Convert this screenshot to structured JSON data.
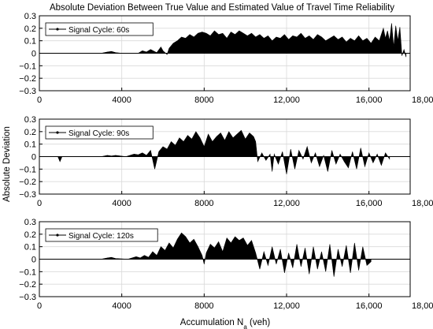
{
  "title": "Absolute Deviation Between True Value and Estimated Value of Travel Time Reliability",
  "ylabel": "Absolute Deviation",
  "xlabel": {
    "main": "Accumulation N",
    "sub": "a",
    "unit": " (veh)"
  },
  "colors": {
    "fill": "#000000",
    "grid": "#d9d9d9",
    "frame": "#000000"
  },
  "chart_data": [
    {
      "type": "area",
      "legend": "Signal Cycle: 60s",
      "legend_position": "top-left",
      "grid": true,
      "xlim": [
        0,
        18000
      ],
      "ylim": [
        -0.3,
        0.3
      ],
      "x_ticks": [
        {
          "value": 0,
          "label": "0"
        },
        {
          "value": 4000,
          "label": "4000"
        },
        {
          "value": 8000,
          "label": "8000"
        },
        {
          "value": 12000,
          "label": "12,000"
        },
        {
          "value": 16000,
          "label": "16,000"
        },
        {
          "value": 18000,
          "label": "18,000"
        }
      ],
      "y_ticks": [
        {
          "value": 0.3,
          "label": "0.3"
        },
        {
          "value": 0.2,
          "label": "0.2"
        },
        {
          "value": 0.1,
          "label": "0.1"
        },
        {
          "value": 0,
          "label": "0"
        },
        {
          "value": -0.1,
          "label": "−0.1"
        },
        {
          "value": -0.2,
          "label": "−0.2"
        },
        {
          "value": -0.3,
          "label": "−0.3"
        }
      ],
      "x": [
        0,
        3000,
        3300,
        3500,
        3700,
        4000,
        4800,
        5000,
        5200,
        5400,
        5700,
        5900,
        6000,
        6200,
        6300,
        6500,
        6700,
        6900,
        7100,
        7300,
        7500,
        7700,
        7900,
        8100,
        8300,
        8500,
        8700,
        8900,
        9100,
        9300,
        9500,
        9700,
        9900,
        10100,
        10300,
        10500,
        10700,
        10900,
        11100,
        11300,
        11500,
        11700,
        11900,
        12100,
        12300,
        12500,
        12700,
        12900,
        13100,
        13300,
        13500,
        13700,
        13900,
        14100,
        14300,
        14500,
        14700,
        14900,
        15100,
        15300,
        15500,
        15700,
        15900,
        16100,
        16300,
        16500,
        16700,
        16800,
        16900,
        17000,
        17100,
        17200,
        17300,
        17400,
        17500,
        17600,
        17700,
        17800
      ],
      "y": [
        0,
        0,
        0.01,
        0.015,
        0.005,
        0,
        0,
        0.02,
        0.01,
        0.03,
        0.005,
        0.05,
        0.02,
        -0.01,
        0.04,
        0.08,
        0.1,
        0.13,
        0.12,
        0.15,
        0.13,
        0.16,
        0.17,
        0.16,
        0.14,
        0.18,
        0.15,
        0.16,
        0.12,
        0.17,
        0.15,
        0.18,
        0.16,
        0.14,
        0.16,
        0.13,
        0.15,
        0.12,
        0.14,
        0.1,
        0.13,
        0.12,
        0.15,
        0.11,
        0.14,
        0.13,
        0.16,
        0.12,
        0.14,
        0.11,
        0.15,
        0.13,
        0.1,
        0.12,
        0.14,
        0.11,
        0.13,
        0.09,
        0.12,
        0.1,
        0.14,
        0.1,
        0.12,
        0.08,
        0.13,
        0.1,
        0.2,
        0.12,
        0.18,
        0.1,
        0.24,
        0.05,
        0.22,
        0.1,
        0.21,
        -0.02,
        0.03,
        -0.03
      ]
    },
    {
      "type": "area",
      "legend": "Signal Cycle: 90s",
      "legend_position": "top-left",
      "grid": true,
      "xlim": [
        0,
        18000
      ],
      "ylim": [
        -0.3,
        0.3
      ],
      "x_ticks": [
        {
          "value": 0,
          "label": "0"
        },
        {
          "value": 4000,
          "label": "4000"
        },
        {
          "value": 8000,
          "label": "8000"
        },
        {
          "value": 12000,
          "label": "12,000"
        },
        {
          "value": 16000,
          "label": "16,000"
        },
        {
          "value": 18000,
          "label": "18,000"
        }
      ],
      "y_ticks": [
        {
          "value": 0.3,
          "label": "0.3"
        },
        {
          "value": 0.2,
          "label": "0.2"
        },
        {
          "value": 0.1,
          "label": "0.1"
        },
        {
          "value": 0,
          "label": "0"
        },
        {
          "value": -0.1,
          "label": "−0.1"
        },
        {
          "value": -0.2,
          "label": "−0.2"
        },
        {
          "value": -0.3,
          "label": "−0.3"
        }
      ],
      "x": [
        0,
        900,
        1000,
        1100,
        2000,
        3000,
        3300,
        3500,
        3700,
        4200,
        4400,
        4600,
        4800,
        5000,
        5200,
        5400,
        5600,
        5800,
        6000,
        6200,
        6400,
        6600,
        6800,
        7000,
        7200,
        7400,
        7600,
        7800,
        8000,
        8200,
        8400,
        8600,
        8800,
        9000,
        9200,
        9400,
        9600,
        9800,
        10000,
        10200,
        10400,
        10500,
        10600,
        10800,
        11000,
        11200,
        11300,
        11400,
        11600,
        11800,
        12000,
        12200,
        12400,
        12600,
        12800,
        13000,
        13200,
        13400,
        13600,
        13800,
        14000,
        14200,
        14400,
        14600,
        14800,
        15000,
        15200,
        15400,
        15600,
        15800,
        16000,
        16200,
        16400,
        16600,
        16800,
        17000
      ],
      "y": [
        0,
        0,
        -0.04,
        0,
        0,
        0,
        0.01,
        0.005,
        0.01,
        0,
        0.01,
        0.02,
        0.015,
        0.03,
        0.01,
        0.05,
        -0.1,
        0.04,
        0.08,
        0.06,
        0.12,
        0.09,
        0.15,
        0.12,
        0.17,
        0.14,
        0.2,
        0.15,
        0.08,
        0.18,
        0.12,
        0.16,
        0.19,
        0.13,
        0.2,
        0.15,
        0.18,
        0.21,
        0.14,
        0.19,
        0.16,
        0.12,
        -0.04,
        0.03,
        -0.03,
        0.02,
        -0.12,
        0.02,
        -0.06,
        0.04,
        -0.14,
        0.06,
        -0.1,
        0.05,
        -0.02,
        0.08,
        -0.05,
        0.03,
        -0.08,
        0.01,
        -0.12,
        0.05,
        -0.06,
        0.02,
        -0.04,
        -0.09,
        0.04,
        -0.1,
        0.07,
        -0.08,
        0.03,
        -0.05,
        0.02,
        -0.07,
        0.03,
        -0.02
      ]
    },
    {
      "type": "area",
      "legend": "Signal Cycle: 120s",
      "legend_position": "top-left",
      "grid": true,
      "xlim": [
        0,
        18000
      ],
      "ylim": [
        -0.3,
        0.3
      ],
      "x_ticks": [
        {
          "value": 0,
          "label": "0"
        },
        {
          "value": 4000,
          "label": "4000"
        },
        {
          "value": 8000,
          "label": "8000"
        },
        {
          "value": 12000,
          "label": "12,000"
        },
        {
          "value": 16000,
          "label": "16,000"
        },
        {
          "value": 18000,
          "label": "18,000"
        }
      ],
      "y_ticks": [
        {
          "value": 0.3,
          "label": "0.3"
        },
        {
          "value": 0.2,
          "label": "0.2"
        },
        {
          "value": 0.1,
          "label": "0.1"
        },
        {
          "value": 0,
          "label": "0"
        },
        {
          "value": -0.1,
          "label": "−0.1"
        },
        {
          "value": -0.2,
          "label": "−0.2"
        },
        {
          "value": -0.3,
          "label": "−0.3"
        }
      ],
      "x": [
        0,
        3000,
        3300,
        3500,
        3700,
        4300,
        4500,
        4700,
        4900,
        5100,
        5300,
        5500,
        5700,
        5900,
        6100,
        6300,
        6500,
        6700,
        6900,
        7100,
        7300,
        7500,
        7700,
        7900,
        8000,
        8100,
        8300,
        8500,
        8700,
        8900,
        9100,
        9300,
        9500,
        9700,
        9900,
        10100,
        10300,
        10500,
        10700,
        10900,
        11100,
        11300,
        11500,
        11700,
        11900,
        12100,
        12300,
        12500,
        12700,
        12900,
        13100,
        13300,
        13500,
        13700,
        13900,
        14100,
        14300,
        14500,
        14700,
        14900,
        15100,
        15300,
        15500,
        15700,
        15900,
        16100
      ],
      "y": [
        0,
        0,
        0.01,
        0.015,
        0.005,
        0,
        0.01,
        0.02,
        0.01,
        0.03,
        0.015,
        0.06,
        0.03,
        0.1,
        0.07,
        0.13,
        0.09,
        0.16,
        0.21,
        0.18,
        0.13,
        0.16,
        0.1,
        0.03,
        -0.04,
        0.05,
        0.12,
        0.09,
        0.14,
        0.06,
        0.17,
        0.13,
        0.18,
        0.15,
        0.17,
        0.11,
        0.15,
        0.05,
        -0.08,
        0.06,
        -0.05,
        0.1,
        -0.04,
        0.08,
        -0.11,
        0.05,
        -0.07,
        0.12,
        -0.06,
        0.09,
        -0.12,
        0.1,
        -0.08,
        0.06,
        -0.1,
        0.12,
        -0.14,
        0.08,
        -0.06,
        0.11,
        -0.11,
        0.13,
        -0.09,
        0.1,
        -0.05,
        -0.02
      ]
    }
  ]
}
